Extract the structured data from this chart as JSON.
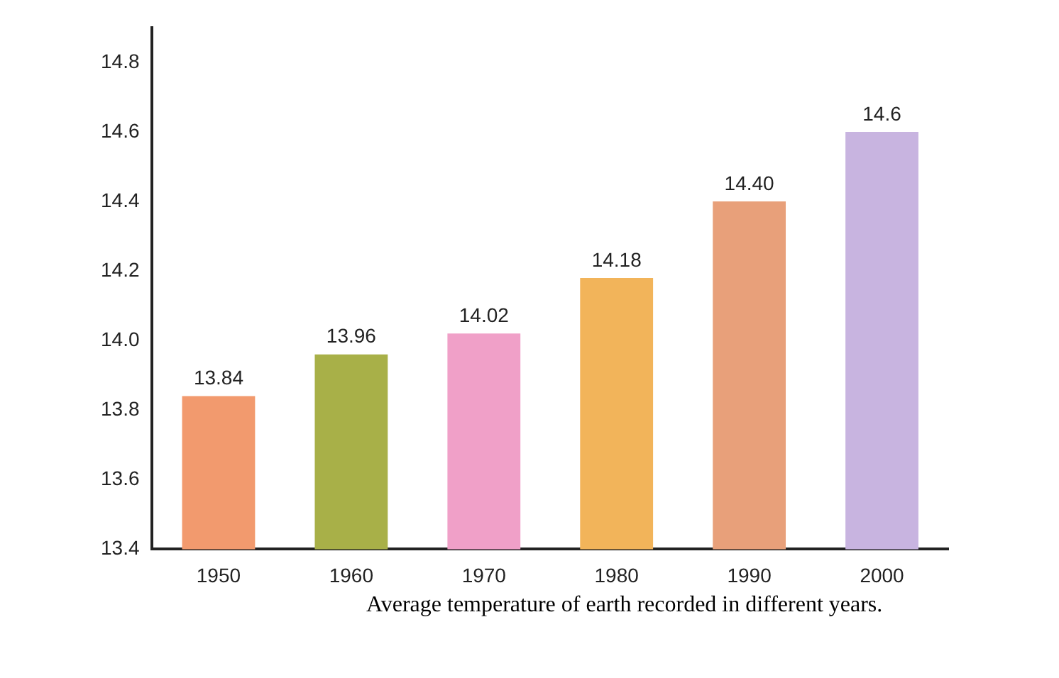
{
  "chart_data": {
    "type": "bar",
    "categories": [
      "1950",
      "1960",
      "1970",
      "1980",
      "1990",
      "2000"
    ],
    "values": [
      13.84,
      13.96,
      14.02,
      14.18,
      14.4,
      14.6
    ],
    "colors": [
      "#f29a6e",
      "#a8b048",
      "#f0a0c8",
      "#f2b45a",
      "#e8a07a",
      "#c8b4e0"
    ],
    "value_labels": [
      "13.84",
      "13.96",
      "14.02",
      "14.18",
      "14.40",
      "14.6"
    ],
    "ylim": [
      13.4,
      14.9
    ],
    "yticks": [
      13.4,
      13.6,
      13.8,
      {
        "value": 14,
        "label": "14.0"
      },
      14.2,
      14.4,
      14.6,
      14.8
    ],
    "grid": false,
    "legend": false,
    "annotations": [
      "Average temperature of earth recorded in different years."
    ]
  }
}
